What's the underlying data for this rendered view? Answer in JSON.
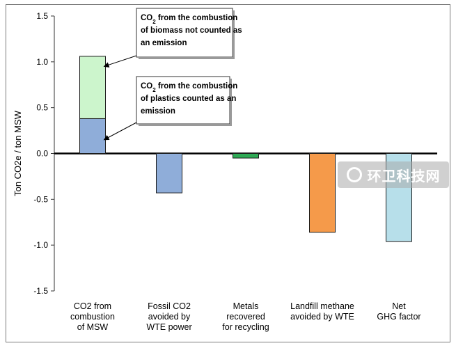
{
  "chart_data": {
    "type": "bar",
    "stacked": true,
    "title": "",
    "xlabel": "",
    "ylabel": "Ton CO2e / ton MSW",
    "ylim": [
      -1.5,
      1.5
    ],
    "yticks": [
      "1.5",
      "1.0",
      "0.5",
      "0.0",
      "-0.5",
      "-1.0",
      "-1.5"
    ],
    "ytick_values": [
      1.5,
      1.0,
      0.5,
      0.0,
      -0.5,
      -1.0,
      -1.5
    ],
    "grid": false,
    "categories": [
      [
        "CO2 from",
        "combustion",
        "of MSW"
      ],
      [
        "Fossil CO2",
        "avoided by",
        "WTE power"
      ],
      [
        "Metals",
        "recovered",
        "for recycling"
      ],
      [
        "Landfill methane",
        "avoided by WTE"
      ],
      [
        "Net",
        "GHG factor"
      ]
    ],
    "bars": [
      {
        "category_index": 0,
        "segments": [
          {
            "value": 0.38,
            "color": "#8fadd9"
          },
          {
            "value": 0.68,
            "color": "#ccf5cc"
          }
        ]
      },
      {
        "category_index": 1,
        "segments": [
          {
            "value": -0.43,
            "color": "#8fadd9"
          }
        ]
      },
      {
        "category_index": 2,
        "segments": [
          {
            "value": -0.05,
            "color": "#2eaa55"
          }
        ]
      },
      {
        "category_index": 3,
        "segments": [
          {
            "value": -0.86,
            "color": "#f59a4a"
          }
        ]
      },
      {
        "category_index": 4,
        "segments": [
          {
            "value": -0.96,
            "color": "#b7dfea"
          }
        ]
      }
    ],
    "annotations": [
      {
        "id": "biomass",
        "lines": [
          [
            {
              "text": "CO"
            },
            {
              "text": "2",
              "sub": true
            },
            {
              "text": " from the combustion"
            }
          ],
          [
            {
              "text": "of biomass not counted as"
            }
          ],
          [
            {
              "text": "an emission"
            }
          ]
        ],
        "points_to_value": 0.95
      },
      {
        "id": "plastics",
        "lines": [
          [
            {
              "text": "CO"
            },
            {
              "text": "2",
              "sub": true
            },
            {
              "text": " from the combustion"
            }
          ],
          [
            {
              "text": "of plastics counted as an"
            }
          ],
          [
            {
              "text": "emission"
            }
          ]
        ],
        "points_to_value": 0.15
      }
    ]
  },
  "watermark": "环卫科技网",
  "colors": {
    "zero_line": "#000000",
    "axis": "#333333",
    "border": "#7a7a7a"
  }
}
